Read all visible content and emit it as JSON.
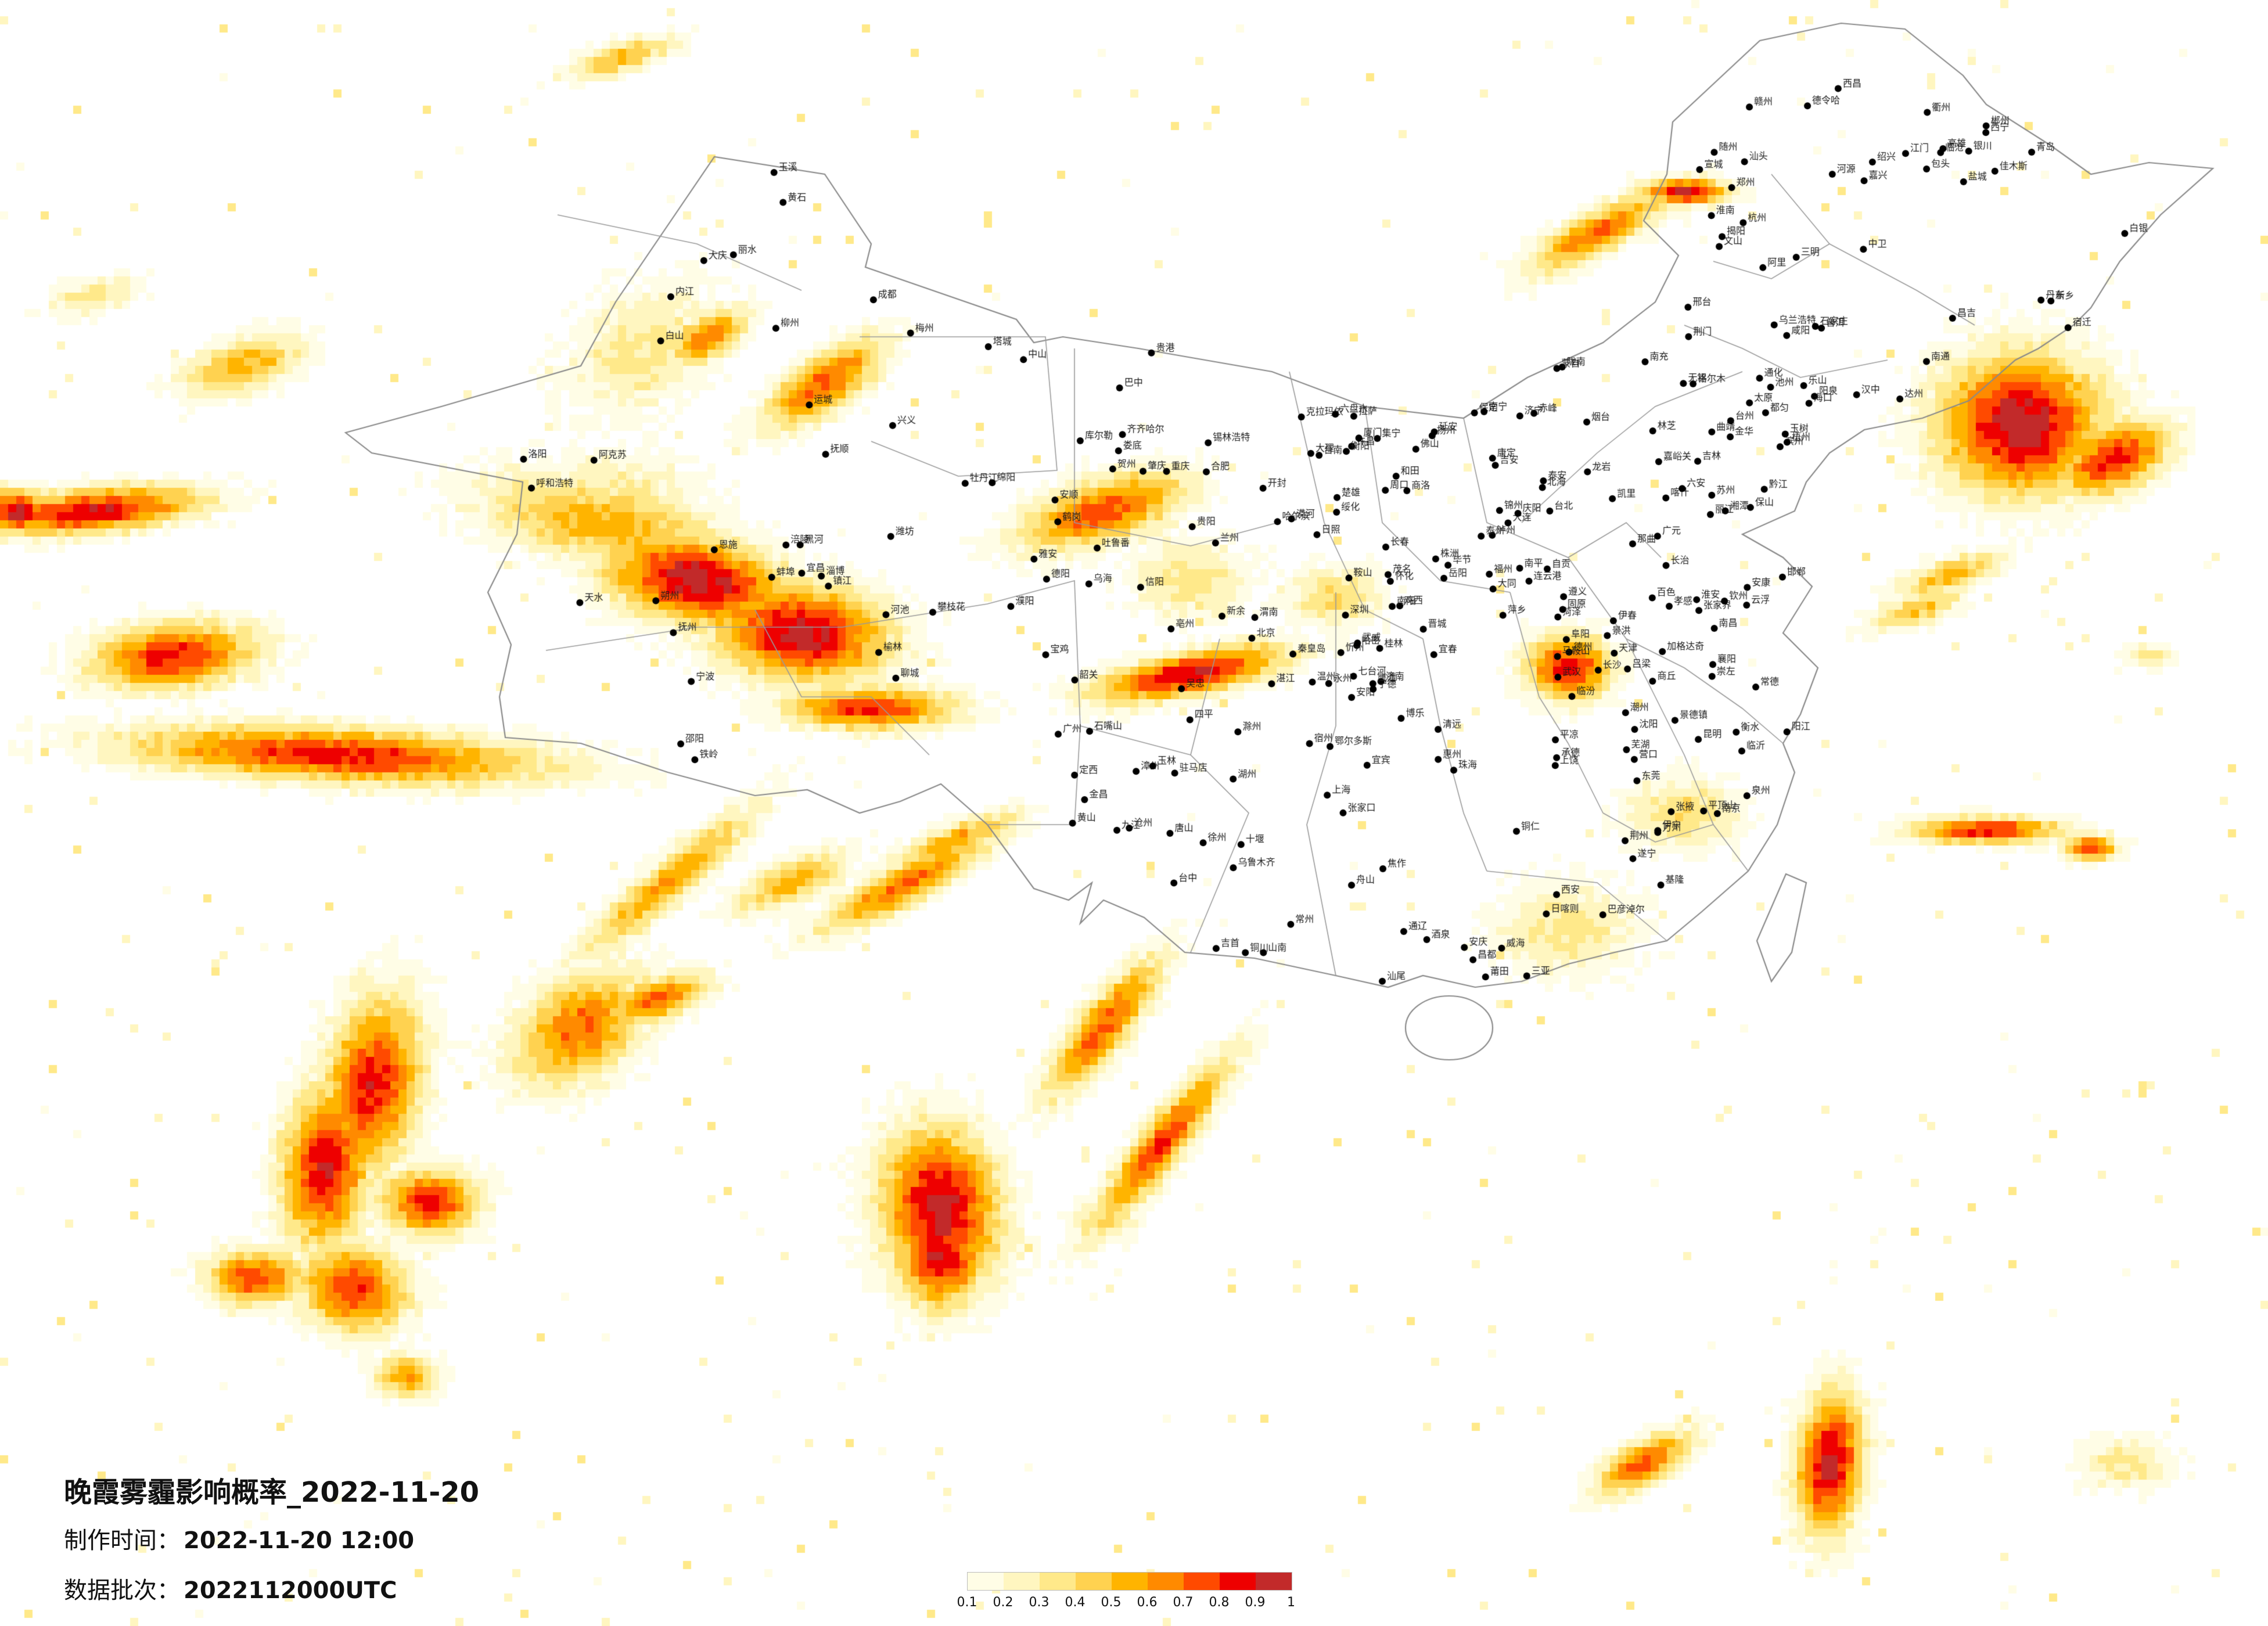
{
  "info": {
    "title": "晚霞雾霾影响概率_2022-11-20",
    "made_label": "制作时间：",
    "made_value": "2022-11-20 12:00",
    "batch_label": "数据批次：",
    "batch_value": "2022112000UTC"
  },
  "legend": {
    "colors": [
      "#fffde6",
      "#fff6c0",
      "#ffe98a",
      "#ffd250",
      "#ffb400",
      "#ff8a00",
      "#ff4a00",
      "#ee0000",
      "#c22a2a"
    ],
    "ticks": [
      "0.1",
      "0.2",
      "0.3",
      "0.4",
      "0.5",
      "0.6",
      "0.7",
      "0.8",
      "0.9",
      "1"
    ]
  },
  "cities": [
    "克拉玛依",
    "昌吉",
    "乌鲁木齐",
    "吐鲁番",
    "哈密",
    "伊宁",
    "阿克苏",
    "喀什",
    "和田",
    "库尔勒",
    "博乐",
    "塔城",
    "漠河",
    "加格达奇",
    "黑河",
    "大庆",
    "齐齐哈尔",
    "绥化",
    "哈尔滨",
    "佳木斯",
    "七台河",
    "鸡西",
    "牡丹江",
    "伊春",
    "鹤岗",
    "长春",
    "吉林",
    "四平",
    "通化",
    "白山",
    "沈阳",
    "大连",
    "丹东",
    "锦州",
    "营口",
    "鞍山",
    "抚顺",
    "铁岭",
    "呼和浩特",
    "包头",
    "鄂尔多斯",
    "赤峰",
    "通辽",
    "锡林浩特",
    "乌兰浩特",
    "乌海",
    "巴彦淖尔",
    "集宁",
    "北京",
    "天津",
    "石家庄",
    "保定",
    "唐山",
    "秦皇岛",
    "张家口",
    "承德",
    "沧州",
    "邯郸",
    "邢台",
    "衡水",
    "太原",
    "大同",
    "忻州",
    "朔州",
    "阳泉",
    "长治",
    "晋城",
    "临汾",
    "运城",
    "吕梁",
    "济南",
    "青岛",
    "烟台",
    "威海",
    "潍坊",
    "淄博",
    "临沂",
    "济宁",
    "泰安",
    "日照",
    "聊城",
    "德州",
    "滨州",
    "菏泽",
    "郑州",
    "洛阳",
    "开封",
    "新乡",
    "焦作",
    "安阳",
    "濮阳",
    "许昌",
    "平顶山",
    "南阳",
    "信阳",
    "驻马店",
    "周口",
    "商丘",
    "西安",
    "宝鸡",
    "咸阳",
    "渭南",
    "延安",
    "榆林",
    "汉中",
    "安康",
    "商洛",
    "铜川",
    "兰州",
    "天水",
    "武威",
    "张掖",
    "酒泉",
    "嘉峪关",
    "金昌",
    "白银",
    "平凉",
    "庆阳",
    "定西",
    "陇南",
    "西宁",
    "格尔木",
    "德令哈",
    "玉树",
    "银川",
    "石嘴山",
    "吴忠",
    "固原",
    "中卫",
    "成都",
    "绵阳",
    "德阳",
    "南充",
    "宜宾",
    "泸州",
    "自贡",
    "乐山",
    "达州",
    "广元",
    "巴中",
    "遂宁",
    "内江",
    "雅安",
    "攀枝花",
    "西昌",
    "康定",
    "重庆",
    "万州",
    "涪陵",
    "黔江",
    "贵阳",
    "遵义",
    "六盘水",
    "安顺",
    "都匀",
    "凯里",
    "铜仁",
    "毕节",
    "兴义",
    "昆明",
    "曲靖",
    "玉溪",
    "大理",
    "丽江",
    "保山",
    "临沧",
    "普洱",
    "蒙自",
    "文山",
    "景洪",
    "楚雄",
    "武汉",
    "宜昌",
    "襄阳",
    "荆州",
    "十堰",
    "恩施",
    "黄石",
    "孝感",
    "荆门",
    "随州",
    "长沙",
    "株洲",
    "湘潭",
    "衡阳",
    "岳阳",
    "常德",
    "张家界",
    "怀化",
    "邵阳",
    "永州",
    "郴州",
    "娄底",
    "吉首",
    "南京",
    "苏州",
    "无锡",
    "常州",
    "南通",
    "扬州",
    "镇江",
    "徐州",
    "连云港",
    "盐城",
    "淮安",
    "宿迁",
    "泰州",
    "上海",
    "杭州",
    "宁波",
    "温州",
    "绍兴",
    "嘉兴",
    "湖州",
    "金华",
    "衢州",
    "台州",
    "丽水",
    "舟山",
    "合肥",
    "芜湖",
    "蚌埠",
    "淮南",
    "马鞍山",
    "安庆",
    "黄山",
    "阜阳",
    "六安",
    "宿州",
    "亳州",
    "滁州",
    "宣城",
    "池州",
    "福州",
    "厦门",
    "泉州",
    "漳州",
    "莆田",
    "三明",
    "南平",
    "龙岩",
    "宁德",
    "南昌",
    "九江",
    "赣州",
    "上饶",
    "景德镇",
    "萍乡",
    "新余",
    "鹰潭",
    "宜春",
    "吉安",
    "抚州",
    "广州",
    "深圳",
    "珠海",
    "汕头",
    "佛山",
    "东莞",
    "中山",
    "江门",
    "湛江",
    "茂名",
    "肇庆",
    "惠州",
    "梅州",
    "韶关",
    "清远",
    "阳江",
    "揭阳",
    "潮州",
    "河源",
    "汕尾",
    "云浮",
    "南宁",
    "柳州",
    "桂林",
    "梧州",
    "北海",
    "钦州",
    "百色",
    "河池",
    "玉林",
    "贵港",
    "崇左",
    "贺州",
    "海口",
    "三亚",
    "台北",
    "台中",
    "高雄",
    "台南",
    "基隆",
    "拉萨",
    "日喀则",
    "那曲",
    "昌都",
    "林芝",
    "山南",
    "阿里"
  ]
}
